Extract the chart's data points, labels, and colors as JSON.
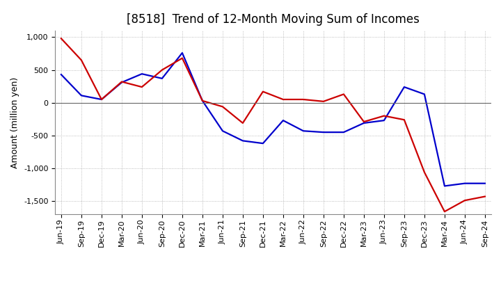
{
  "title": "[8518]  Trend of 12-Month Moving Sum of Incomes",
  "ylabel": "Amount (million yen)",
  "x_labels": [
    "Jun-19",
    "Sep-19",
    "Dec-19",
    "Mar-20",
    "Jun-20",
    "Sep-20",
    "Dec-20",
    "Mar-21",
    "Jun-21",
    "Sep-21",
    "Dec-21",
    "Mar-22",
    "Jun-22",
    "Sep-22",
    "Dec-22",
    "Mar-23",
    "Jun-23",
    "Sep-23",
    "Dec-23",
    "Mar-24",
    "Jun-24",
    "Sep-24"
  ],
  "ordinary_income": [
    430,
    110,
    50,
    310,
    440,
    370,
    760,
    30,
    -430,
    -580,
    -620,
    -270,
    -430,
    -450,
    -450,
    -310,
    -270,
    240,
    130,
    -1270,
    -1230,
    -1230
  ],
  "net_income": [
    980,
    650,
    50,
    320,
    240,
    500,
    680,
    30,
    -60,
    -310,
    170,
    50,
    50,
    20,
    130,
    -290,
    -200,
    -260,
    -1060,
    -1660,
    -1490,
    -1430
  ],
  "ordinary_income_color": "#0000cc",
  "net_income_color": "#cc0000",
  "background_color": "#ffffff",
  "ylim": [
    -1700,
    1100
  ],
  "yticks": [
    -1500,
    -1000,
    -500,
    0,
    500,
    1000
  ],
  "grid_color": "#aaaaaa",
  "title_fontsize": 12,
  "axis_fontsize": 9,
  "tick_fontsize": 8,
  "legend_fontsize": 9,
  "linewidth": 1.6
}
